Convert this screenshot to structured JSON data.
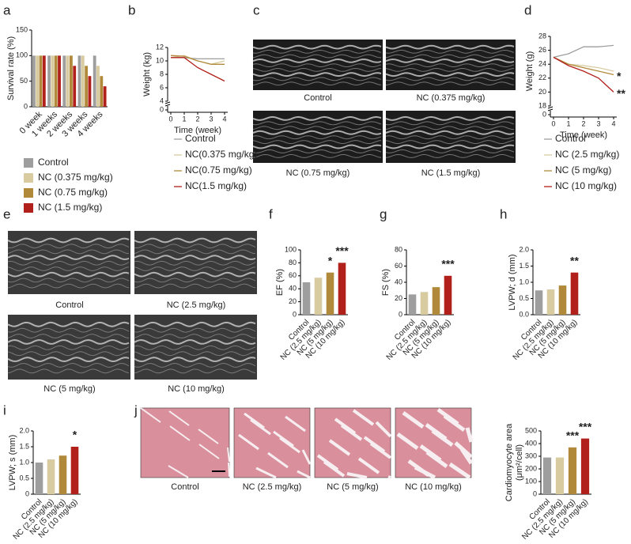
{
  "panels": [
    "a",
    "b",
    "c",
    "d",
    "e",
    "f",
    "g",
    "h",
    "i",
    "j"
  ],
  "images": {
    "c": [
      "Control",
      "NC (0.375 mg/kg)",
      "NC (0.75 mg/kg)",
      "NC (1.5 mg/kg)"
    ],
    "e": [
      "Control",
      "NC (2.5 mg/kg)",
      "NC (5 mg/kg)",
      "NC (10 mg/kg)"
    ],
    "j": [
      "Control",
      "NC (2.5 mg/kg)",
      "NC (5 mg/kg)",
      "NC (10 mg/kg)"
    ]
  },
  "chart_data": [
    {
      "type": "bar",
      "ylabel": "Survival rate (%)",
      "categories": [
        "0 week",
        "1 weeks",
        "2 weeks",
        "3 weeks",
        "4 weeks"
      ],
      "series": [
        {
          "name": "Control",
          "color": "#9e9e9e",
          "values": [
            100,
            100,
            100,
            100,
            100
          ]
        },
        {
          "name": "NC (0.375 mg/kg)",
          "color": "#d8cba0",
          "values": [
            100,
            100,
            100,
            100,
            80
          ]
        },
        {
          "name": "NC (0.75 mg/kg)",
          "color": "#b08a3a",
          "values": [
            100,
            100,
            100,
            80,
            60
          ]
        },
        {
          "name": "NC (1.5 mg/kg)",
          "color": "#b2201c",
          "values": [
            100,
            100,
            80,
            60,
            40
          ]
        }
      ],
      "ylim": [
        0,
        150
      ],
      "yticks": [
        0,
        50,
        100,
        150
      ]
    },
    {
      "type": "line",
      "ylabel": "Weight (kg)",
      "xlabel": "Time (week)",
      "x": [
        0,
        1,
        2,
        3,
        4
      ],
      "xlim": [
        0,
        4
      ],
      "xticks": [
        0,
        1,
        2,
        3,
        4
      ],
      "series": [
        {
          "name": "Control",
          "color": "#9e9e9e",
          "values": [
            10.5,
            10.5,
            10.3,
            10.3,
            10.3
          ]
        },
        {
          "name": "NC(0.375 mg/kg)",
          "color": "#d8cba0",
          "values": [
            10.5,
            10.8,
            10,
            9.5,
            10
          ]
        },
        {
          "name": "NC(0.75 mg/kg)",
          "color": "#b08a3a",
          "values": [
            10.8,
            10.7,
            10,
            9.5,
            9.5
          ]
        },
        {
          "name": "NC(1.5 mg/kg)",
          "color": "#b2201c",
          "values": [
            10.5,
            10.5,
            9,
            8,
            7
          ]
        }
      ],
      "ylim": [
        4,
        12
      ],
      "yticks": [
        4,
        6,
        8,
        10,
        12
      ],
      "ybreak": 0
    },
    {
      "type": "line",
      "ylabel": "Weight (g)",
      "xlabel": "Time (week)",
      "x": [
        0,
        1,
        2,
        3,
        4
      ],
      "xlim": [
        0,
        4
      ],
      "xticks": [
        0,
        1,
        2,
        3,
        4
      ],
      "series": [
        {
          "name": "Control",
          "color": "#9e9e9e",
          "values": [
            25,
            25.5,
            26.5,
            26.5,
            26.7
          ]
        },
        {
          "name": "NC (2.5 mg/kg)",
          "color": "#d8cba0",
          "values": [
            25,
            24,
            23.8,
            23.5,
            23
          ]
        },
        {
          "name": "NC (5 mg/kg)",
          "color": "#b08a3a",
          "values": [
            25,
            24,
            23.5,
            23,
            22.5
          ]
        },
        {
          "name": "NC (10 mg/kg)",
          "color": "#b2201c",
          "values": [
            25,
            23.8,
            23,
            22,
            20
          ]
        }
      ],
      "annotations": [
        "*",
        "**"
      ],
      "ylim": [
        18,
        28
      ],
      "yticks": [
        18,
        20,
        22,
        24,
        26,
        28
      ],
      "ybreak": 0
    },
    {
      "type": "bar",
      "ylabel": "EF (%)",
      "categories": [
        "Control",
        "NC (2.5 mg/kg)",
        "NC (5 mg/kg)",
        "NC (10 mg/kg)"
      ],
      "values": [
        50,
        57,
        65,
        80
      ],
      "colors": [
        "#9e9e9e",
        "#d8cba0",
        "#b08a3a",
        "#b2201c"
      ],
      "significance": [
        null,
        null,
        "*",
        "***"
      ],
      "ylim": [
        0,
        100
      ],
      "yticks": [
        0,
        20,
        40,
        60,
        80,
        100
      ]
    },
    {
      "type": "bar",
      "ylabel": "FS (%)",
      "categories": [
        "Control",
        "NC (2.5 mg/kg)",
        "NC (5 mg/kg)",
        "NC (10 mg/kg)"
      ],
      "values": [
        25,
        28,
        34,
        48
      ],
      "colors": [
        "#9e9e9e",
        "#d8cba0",
        "#b08a3a",
        "#b2201c"
      ],
      "significance": [
        null,
        null,
        null,
        "***"
      ],
      "ylim": [
        0,
        80
      ],
      "yticks": [
        0,
        20,
        40,
        60,
        80
      ]
    },
    {
      "type": "bar",
      "ylabel": "LVPW; d (mm)",
      "categories": [
        "Control",
        "NC (2.5 mg/kg)",
        "NC (5 mg/kg)",
        "NC (10 mg/kg)"
      ],
      "values": [
        0.75,
        0.78,
        0.9,
        1.3
      ],
      "colors": [
        "#9e9e9e",
        "#d8cba0",
        "#b08a3a",
        "#b2201c"
      ],
      "significance": [
        null,
        null,
        null,
        "**"
      ],
      "ylim": [
        0,
        2
      ],
      "yticks": [
        {
          "value": 0,
          "label": "0.0"
        },
        0.5,
        {
          "value": 1,
          "label": "1.0"
        },
        1.5,
        {
          "value": 2,
          "label": "2.0"
        }
      ]
    },
    {
      "type": "bar",
      "ylabel": "LVPW; s (mm)",
      "categories": [
        "Control",
        "NC (2.5 mg/kg)",
        "NC (5 mg/kg)",
        "NC (10 mg/kg)"
      ],
      "values": [
        1.0,
        1.1,
        1.22,
        1.5
      ],
      "colors": [
        "#9e9e9e",
        "#d8cba0",
        "#b08a3a",
        "#b2201c"
      ],
      "significance": [
        null,
        null,
        null,
        "*"
      ],
      "ylim": [
        0,
        2
      ],
      "yticks": [
        0,
        0.5,
        {
          "value": 1,
          "label": "1.0"
        },
        1.5,
        {
          "value": 2,
          "label": "2.0"
        }
      ]
    },
    {
      "type": "bar",
      "ylabel": "Cardiomyocyte area",
      "ylabel2": "(μm²/cell)",
      "categories": [
        "Control",
        "NC (2.5 mg/kg)",
        "NC (5 mg/kg)",
        "NC (10 mg/kg)"
      ],
      "values": [
        290,
        290,
        370,
        440
      ],
      "colors": [
        "#9e9e9e",
        "#d8cba0",
        "#b08a3a",
        "#b2201c"
      ],
      "significance": [
        null,
        null,
        "***",
        "***"
      ],
      "ylim": [
        0,
        500
      ],
      "yticks": [
        0,
        100,
        200,
        300,
        400,
        500
      ]
    }
  ]
}
